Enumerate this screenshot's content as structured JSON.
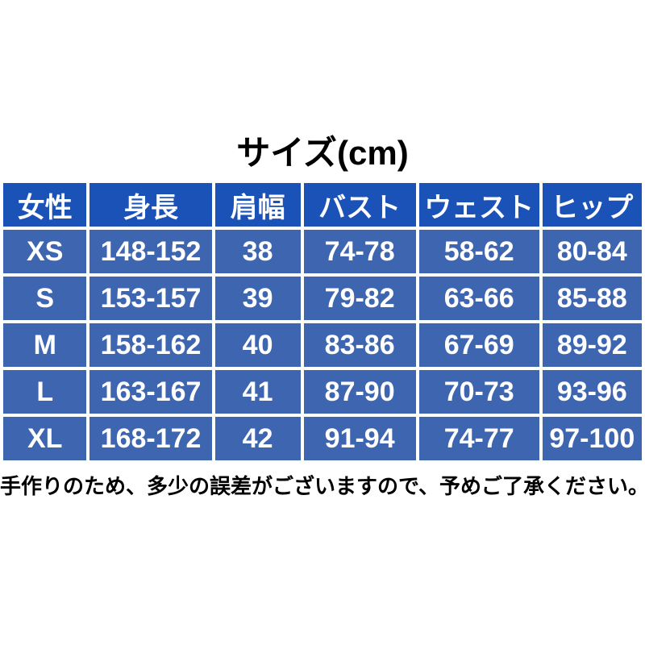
{
  "chart_data": {
    "type": "table",
    "title": "サイズ(cm)",
    "columns": [
      "女性",
      "身長",
      "肩幅",
      "バスト",
      "ウェスト",
      "ヒップ"
    ],
    "rows": [
      [
        "XS",
        "148-152",
        "38",
        "74-78",
        "58-62",
        "80-84"
      ],
      [
        "S",
        "153-157",
        "39",
        "79-82",
        "63-66",
        "85-88"
      ],
      [
        "M",
        "158-162",
        "40",
        "83-86",
        "67-69",
        "89-92"
      ],
      [
        "L",
        "163-167",
        "41",
        "87-90",
        "70-73",
        "93-96"
      ],
      [
        "XL",
        "168-172",
        "42",
        "91-94",
        "74-77",
        "97-100"
      ]
    ],
    "note": "手作りのため、多少の誤差がございますので、予めご了承ください。"
  },
  "colors": {
    "header_bg": "#1b52b8",
    "row_bg": "#3e66b0",
    "gridline": "#ffffff",
    "cell_text": "#ffffff",
    "title_text": "#000000",
    "note_text": "#000000",
    "page_bg": "#ffffff"
  }
}
